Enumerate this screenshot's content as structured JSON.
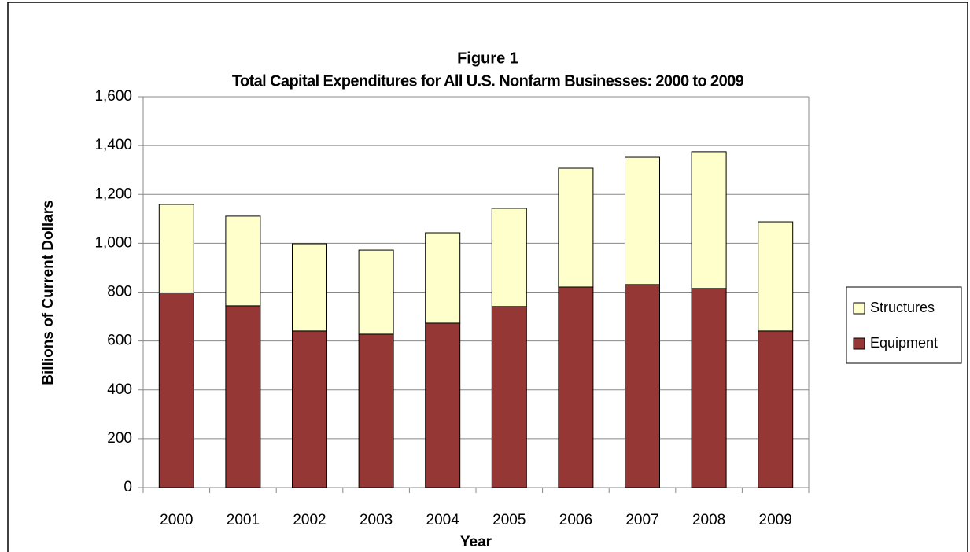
{
  "chart_data": {
    "type": "stacked_bar",
    "figure_label": "Figure 1",
    "title": "Total Capital Expenditures for All U.S. Nonfarm Businesses:  2000 to 2009",
    "y_label": "Billions of Current Dollars",
    "x_label": "Year",
    "categories": [
      "2000",
      "2001",
      "2002",
      "2003",
      "2004",
      "2005",
      "2006",
      "2007",
      "2008",
      "2009"
    ],
    "series": [
      {
        "name": "Equipment",
        "color": "#953735",
        "values": [
          797,
          744,
          641,
          628,
          673,
          741,
          821,
          831,
          815,
          641
        ]
      },
      {
        "name": "Structures",
        "color": "#ffffcc",
        "values": [
          362,
          367,
          357,
          344,
          370,
          402,
          486,
          521,
          560,
          447
        ]
      }
    ],
    "ylim": [
      0,
      1600
    ],
    "yticks": [
      0,
      200,
      400,
      600,
      800,
      {
        "value": 1000,
        "label": "1,000"
      },
      {
        "value": 1200,
        "label": "1,200"
      },
      {
        "value": 1400,
        "label": "1,400"
      },
      {
        "value": 1600,
        "label": "1,600"
      }
    ],
    "grid": true,
    "legend": "right"
  }
}
